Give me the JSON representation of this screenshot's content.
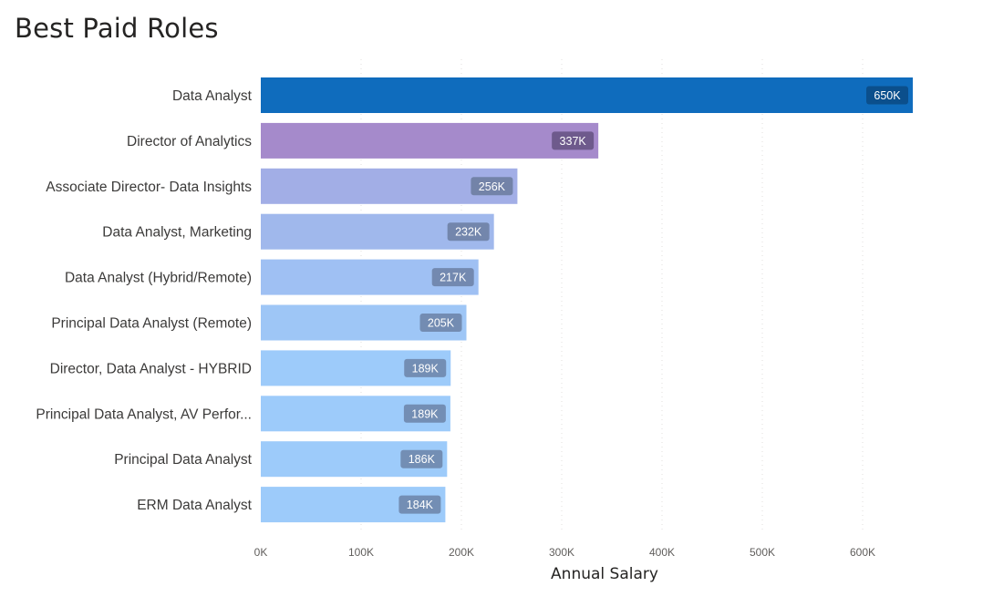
{
  "chart_data": {
    "type": "bar",
    "orientation": "horizontal",
    "title": "Best Paid Roles",
    "xlabel": "Annual Salary",
    "ylabel": "",
    "categories": [
      "Data Analyst",
      "Director of Analytics",
      "Associate Director- Data Insights",
      "Data Analyst, Marketing",
      "Data Analyst (Hybrid/Remote)",
      "Principal Data Analyst (Remote)",
      "Director, Data Analyst - HYBRID",
      "Principal Data Analyst, AV Perfor...",
      "Principal Data Analyst",
      "ERM Data Analyst"
    ],
    "values": [
      650000,
      336500,
      255829.5,
      232423,
      217000,
      205000,
      189309,
      189000,
      185750,
      184000
    ],
    "data_labels": [
      "650K",
      "337K",
      "256K",
      "232K",
      "217K",
      "205K",
      "189K",
      "189K",
      "186K",
      "184K"
    ],
    "bar_colors": [
      "#0f6cbd",
      "#a58acb",
      "#a2aee6",
      "#a0b8ec",
      "#9fc0f3",
      "#9ec6f6",
      "#9dcbfa",
      "#9dcbfa",
      "#9dcbfa",
      "#9dcbfa"
    ],
    "label_bg_colors": [
      "#0b4f8c",
      "#6e5a8c",
      "#7383a8",
      "#7386ac",
      "#7389b0",
      "#738cb2",
      "#738eb4",
      "#738eb4",
      "#738eb4",
      "#738eb4"
    ],
    "xlim": [
      0,
      700000
    ],
    "xticks": [
      0,
      100000,
      200000,
      300000,
      400000,
      500000,
      600000
    ],
    "xtick_labels": [
      "0K",
      "100K",
      "200K",
      "300K",
      "400K",
      "500K",
      "600K"
    ],
    "grid": true,
    "legend": "none"
  }
}
